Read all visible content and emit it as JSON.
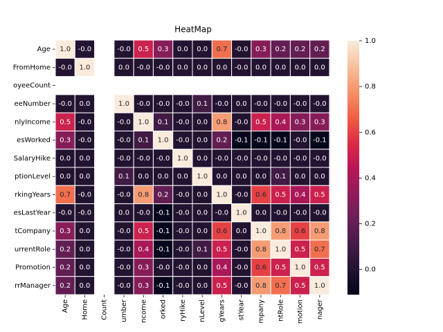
{
  "chart_data": {
    "type": "heatmap",
    "title": "HeatMap",
    "colormap": "rocket",
    "rows": [
      "Age",
      "FromHome",
      "oyeeCount",
      "eeNumber",
      "nlyIncome",
      "esWorked",
      "SalaryHike",
      "ptionLevel",
      "rkingYears",
      "esLastYear",
      "tCompany",
      "urrentRole",
      "Promotion",
      "rrManager"
    ],
    "columns": [
      "Age",
      "Home",
      "Count",
      "umber",
      "ncome",
      "orked",
      "ryHike",
      "nLevel",
      "gYears",
      "stYear",
      "mpany",
      "ntRole",
      "motion",
      "nager"
    ],
    "values": [
      [
        1.0,
        -0.0,
        null,
        -0.0,
        0.5,
        0.3,
        0.0,
        0.0,
        0.7,
        -0.0,
        0.3,
        0.2,
        0.2,
        0.2
      ],
      [
        -0.0,
        1.0,
        null,
        0.0,
        -0.0,
        -0.0,
        0.0,
        0.0,
        0.0,
        -0.0,
        0.0,
        0.0,
        0.0,
        0.0
      ],
      [
        null,
        null,
        null,
        null,
        null,
        null,
        null,
        null,
        null,
        null,
        null,
        null,
        null,
        null
      ],
      [
        -0.0,
        0.0,
        null,
        1.0,
        -0.0,
        -0.0,
        -0.0,
        0.1,
        -0.0,
        0.0,
        -0.0,
        -0.0,
        -0.0,
        -0.0
      ],
      [
        0.5,
        -0.0,
        null,
        -0.0,
        1.0,
        0.1,
        -0.0,
        0.0,
        0.8,
        -0.0,
        0.5,
        0.4,
        0.3,
        0.3
      ],
      [
        0.3,
        -0.0,
        null,
        -0.0,
        0.1,
        1.0,
        -0.0,
        0.0,
        0.2,
        -0.1,
        -0.1,
        -0.1,
        -0.0,
        -0.1
      ],
      [
        0.0,
        0.0,
        null,
        -0.0,
        -0.0,
        -0.0,
        1.0,
        0.0,
        -0.0,
        -0.0,
        -0.0,
        -0.0,
        -0.0,
        -0.0
      ],
      [
        0.0,
        0.0,
        null,
        0.1,
        0.0,
        0.0,
        0.0,
        1.0,
        0.0,
        0.0,
        0.0,
        0.1,
        0.0,
        0.0
      ],
      [
        0.7,
        -0.0,
        null,
        -0.0,
        0.8,
        0.2,
        -0.0,
        0.0,
        1.0,
        -0.0,
        0.6,
        0.5,
        0.4,
        0.5
      ],
      [
        -0.0,
        -0.0,
        null,
        0.0,
        -0.0,
        -0.1,
        -0.0,
        0.0,
        -0.0,
        1.0,
        0.0,
        -0.0,
        -0.0,
        -0.0
      ],
      [
        0.3,
        0.0,
        null,
        -0.0,
        0.5,
        -0.1,
        -0.0,
        0.0,
        0.6,
        0.0,
        1.0,
        0.8,
        0.6,
        0.8
      ],
      [
        0.2,
        0.0,
        null,
        -0.0,
        0.4,
        -0.1,
        -0.0,
        0.1,
        0.5,
        -0.0,
        0.8,
        1.0,
        0.5,
        0.7
      ],
      [
        0.2,
        0.0,
        null,
        -0.0,
        0.3,
        -0.0,
        -0.0,
        0.0,
        0.4,
        -0.0,
        0.6,
        0.5,
        1.0,
        0.5
      ],
      [
        0.2,
        0.0,
        null,
        -0.0,
        0.3,
        -0.1,
        -0.0,
        0.0,
        0.5,
        -0.0,
        0.8,
        0.7,
        0.5,
        1.0
      ]
    ],
    "value_labels": [
      [
        "1.0",
        "-0.0",
        null,
        "-0.0",
        "0.5",
        "0.3",
        "0.0",
        "0.0",
        "0.7",
        "-0.0",
        "0.3",
        "0.2",
        "0.2",
        "0.2"
      ],
      [
        "-0.0",
        "1.0",
        null,
        "0.0",
        "-0.0",
        "-0.0",
        "0.0",
        "0.0",
        "0.0",
        "-0.0",
        "0.0",
        "0.0",
        "0.0",
        "0.0"
      ],
      [
        null,
        null,
        null,
        null,
        null,
        null,
        null,
        null,
        null,
        null,
        null,
        null,
        null,
        null
      ],
      [
        "-0.0",
        "0.0",
        null,
        "1.0",
        "-0.0",
        "-0.0",
        "-0.0",
        "0.1",
        "-0.0",
        "0.0",
        "-0.0",
        "-0.0",
        "-0.0",
        "-0.0"
      ],
      [
        "0.5",
        "-0.0",
        null,
        "-0.0",
        "1.0",
        "0.1",
        "-0.0",
        "0.0",
        "0.8",
        "-0.0",
        "0.5",
        "0.4",
        "0.3",
        "0.3"
      ],
      [
        "0.3",
        "-0.0",
        null,
        "-0.0",
        "0.1",
        "1.0",
        "-0.0",
        "0.0",
        "0.2",
        "-0.1",
        "-0.1",
        "-0.1",
        "-0.0",
        "-0.1"
      ],
      [
        "0.0",
        "0.0",
        null,
        "-0.0",
        "-0.0",
        "-0.0",
        "1.0",
        "0.0",
        "-0.0",
        "-0.0",
        "-0.0",
        "-0.0",
        "-0.0",
        "-0.0"
      ],
      [
        "0.0",
        "0.0",
        null,
        "0.1",
        "0.0",
        "0.0",
        "0.0",
        "1.0",
        "0.0",
        "0.0",
        "0.0",
        "0.1",
        "0.0",
        "0.0"
      ],
      [
        "0.7",
        "-0.0",
        null,
        "-0.0",
        "0.8",
        "0.2",
        "-0.0",
        "0.0",
        "1.0",
        "-0.0",
        "0.6",
        "0.5",
        "0.4",
        "0.5"
      ],
      [
        "-0.0",
        "-0.0",
        null,
        "0.0",
        "-0.0",
        "-0.1",
        "-0.0",
        "0.0",
        "-0.0",
        "1.0",
        "0.0",
        "-0.0",
        "-0.0",
        "-0.0"
      ],
      [
        "0.3",
        "0.0",
        null,
        "-0.0",
        "0.5",
        "-0.1",
        "-0.0",
        "0.0",
        "0.6",
        "0.0",
        "1.0",
        "0.8",
        "0.6",
        "0.8"
      ],
      [
        "0.2",
        "0.0",
        null,
        "-0.0",
        "0.4",
        "-0.1",
        "-0.0",
        "0.1",
        "0.5",
        "-0.0",
        "0.8",
        "1.0",
        "0.5",
        "0.7"
      ],
      [
        "0.2",
        "0.0",
        null,
        "-0.0",
        "0.3",
        "-0.0",
        "-0.0",
        "0.0",
        "0.4",
        "-0.0",
        "0.6",
        "0.5",
        "1.0",
        "0.5"
      ],
      [
        "0.2",
        "0.0",
        null,
        "-0.0",
        "0.3",
        "-0.1",
        "-0.0",
        "0.0",
        "0.5",
        "-0.0",
        "0.8",
        "0.7",
        "0.5",
        "1.0"
      ]
    ],
    "zlim": [
      -0.11,
      1.0
    ],
    "zticks": [
      {
        "value": 0.0,
        "label": "0.0"
      },
      {
        "value": 0.2,
        "label": "0.2"
      },
      {
        "value": 0.4,
        "label": "0.4"
      },
      {
        "value": 0.6,
        "label": "0.6"
      },
      {
        "value": 0.8,
        "label": "0.8"
      },
      {
        "value": 1.0,
        "label": "1.0"
      }
    ]
  }
}
